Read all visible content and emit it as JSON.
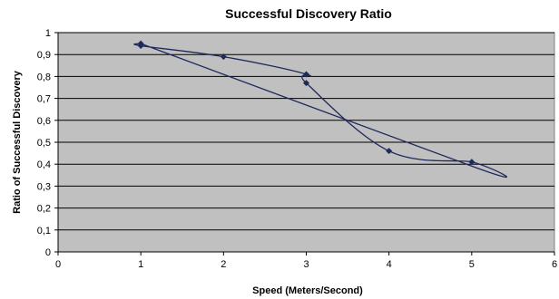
{
  "chart_data": {
    "type": "scatter",
    "title": "Successful Discovery Ratio",
    "xlabel": "Speed (Meters/Second)",
    "ylabel": "Ratio of Successful Discovery",
    "xlim": [
      0,
      6
    ],
    "ylim": [
      0,
      1
    ],
    "x_ticks": [
      0,
      1,
      2,
      3,
      4,
      5,
      6
    ],
    "x_tick_labels": [
      "0",
      "1",
      "2",
      "3",
      "4",
      "5",
      "6"
    ],
    "y_ticks": [
      0,
      0.1,
      0.2,
      0.3,
      0.4,
      0.5,
      0.6,
      0.7,
      0.8,
      0.9,
      1
    ],
    "y_tick_labels": [
      "0",
      "0,1",
      "0,2",
      "0,3",
      "0,4",
      "0,5",
      "0,6",
      "0,7",
      "0,8",
      "0,9",
      "1"
    ],
    "grid": "horizontal",
    "plot_background": "#c0c0c0",
    "series_color": "#1f2a5c",
    "marker": "diamond",
    "smoothed": true,
    "series": [
      {
        "points": [
          {
            "x": 1,
            "y": 0.95
          },
          {
            "x": 1,
            "y": 0.94
          },
          {
            "x": 2,
            "y": 0.89
          },
          {
            "x": 3,
            "y": 0.81
          },
          {
            "x": 3,
            "y": 0.77
          },
          {
            "x": 4,
            "y": 0.46
          },
          {
            "x": 5,
            "y": 0.41
          },
          {
            "x": 5.08,
            "y": 0.38
          },
          {
            "x": 1,
            "y": 0.95
          }
        ]
      }
    ]
  }
}
